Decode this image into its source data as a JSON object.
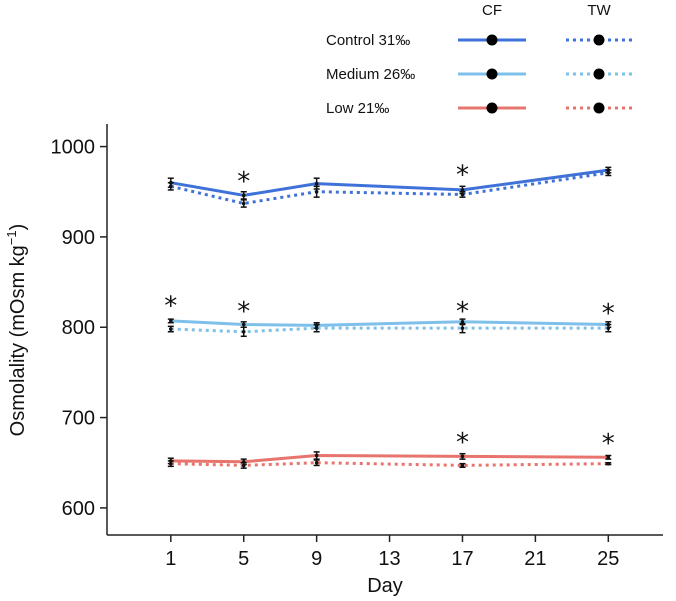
{
  "chart_data": {
    "type": "line",
    "xlabel": "Day",
    "ylabel": "Osmolality (mOsm kg",
    "ylabel_sup": "−1",
    "ylabel_close": ")",
    "x_ticks": [
      1,
      5,
      9,
      13,
      17,
      21,
      25
    ],
    "y_ticks": [
      600,
      700,
      800,
      900,
      1000
    ],
    "xlim": [
      -2.5,
      28
    ],
    "ylim": [
      570,
      1025
    ],
    "legend": {
      "position": "top-right",
      "col_headers": [
        "CF",
        "TW"
      ],
      "rows": [
        {
          "label": "Control 31‰",
          "color": "#3f72d8"
        },
        {
          "label": "Medium 26‰",
          "color": "#7ec0ea"
        },
        {
          "label": "Low 21‰",
          "color": "#e8756d"
        }
      ]
    },
    "series": [
      {
        "group": "Control 31‰",
        "fluid": "CF",
        "style": "solid",
        "color": "#3f72d8",
        "x": [
          1,
          5,
          9,
          17,
          25
        ],
        "y": [
          960,
          946,
          959,
          952,
          974
        ],
        "err": [
          5,
          4,
          6,
          4,
          3
        ]
      },
      {
        "group": "Control 31‰",
        "fluid": "TW",
        "style": "dotted",
        "color": "#3f72d8",
        "x": [
          1,
          5,
          9,
          17,
          25
        ],
        "y": [
          956,
          937,
          950,
          947,
          971
        ],
        "err": [
          4,
          4,
          6,
          3,
          3
        ]
      },
      {
        "group": "Medium 26‰",
        "fluid": "CF",
        "style": "solid",
        "color": "#7ec0ea",
        "x": [
          1,
          5,
          9,
          17,
          25
        ],
        "y": [
          807,
          803,
          802,
          806,
          803
        ],
        "err": [
          2,
          3,
          3,
          3,
          3
        ]
      },
      {
        "group": "Medium 26‰",
        "fluid": "TW",
        "style": "dotted",
        "color": "#7ec0ea",
        "x": [
          1,
          5,
          9,
          17,
          25
        ],
        "y": [
          798,
          795,
          799,
          799,
          799
        ],
        "err": [
          3,
          5,
          4,
          5,
          4
        ]
      },
      {
        "group": "Low 21‰",
        "fluid": "CF",
        "style": "solid",
        "color": "#e8756d",
        "x": [
          1,
          5,
          9,
          17,
          25
        ],
        "y": [
          652,
          651,
          658,
          657,
          656
        ],
        "err": [
          3,
          3,
          4,
          3,
          2
        ]
      },
      {
        "group": "Low 21‰",
        "fluid": "TW",
        "style": "dotted",
        "color": "#e8756d",
        "x": [
          1,
          5,
          9,
          17,
          25
        ],
        "y": [
          649,
          647,
          650,
          647,
          649
        ],
        "err": [
          3,
          3,
          3,
          2,
          1
        ]
      }
    ],
    "significance_markers": [
      {
        "x": 5,
        "y": 963,
        "text": "*"
      },
      {
        "x": 17,
        "y": 970,
        "text": "*"
      },
      {
        "x": 1,
        "y": 825,
        "text": "*"
      },
      {
        "x": 5,
        "y": 819,
        "text": "*"
      },
      {
        "x": 17,
        "y": 819,
        "text": "*"
      },
      {
        "x": 25,
        "y": 817,
        "text": "*"
      },
      {
        "x": 17,
        "y": 674,
        "text": "*"
      },
      {
        "x": 25,
        "y": 673,
        "text": "*"
      }
    ]
  }
}
